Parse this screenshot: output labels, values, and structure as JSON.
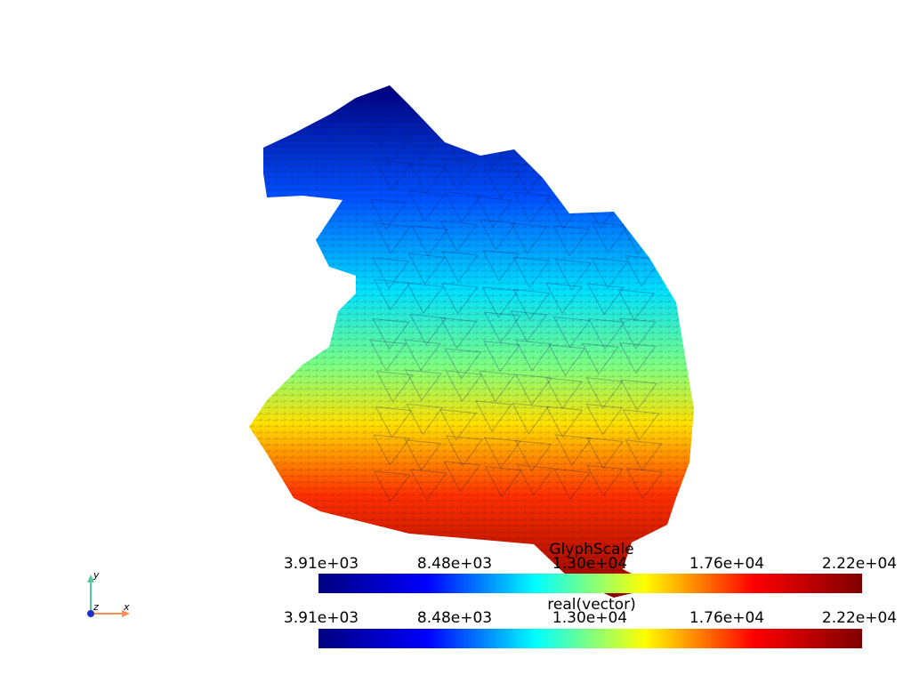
{
  "scene": {
    "colormap": [
      "#00007f",
      "#0000ff",
      "#00ffff",
      "#ffff00",
      "#ff0000",
      "#7f0000"
    ]
  },
  "scalar_bars": [
    {
      "title": "GlyphScale",
      "ticks": [
        "3.91e+03",
        "8.48e+03",
        "1.30e+04",
        "1.76e+04",
        "2.22e+04"
      ]
    },
    {
      "title": "real(vector)",
      "ticks": [
        "3.91e+03",
        "8.48e+03",
        "1.30e+04",
        "1.76e+04",
        "2.22e+04"
      ]
    }
  ],
  "orientation_axes": {
    "x_label": "x",
    "y_label": "y",
    "z_label": "z",
    "x_color": "#ff8c50",
    "y_color": "#50c8a0",
    "z_color": "#1e32c8"
  }
}
